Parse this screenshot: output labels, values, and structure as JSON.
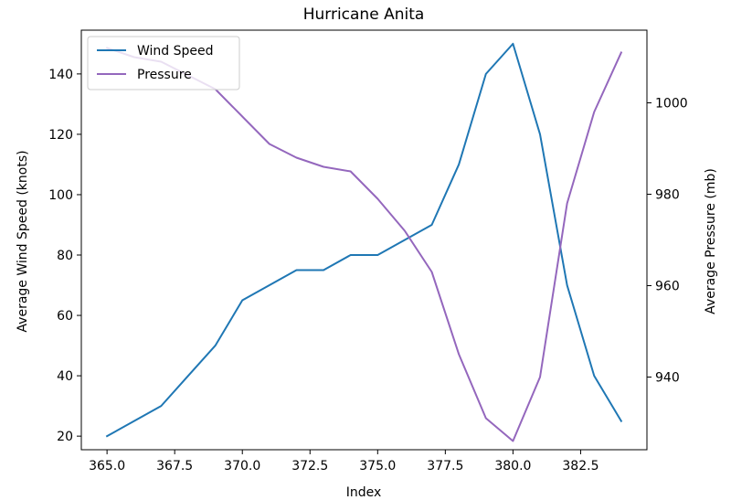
{
  "chart_data": {
    "type": "line",
    "title": "Hurricane Anita",
    "xlabel": "Index",
    "ylabel_left": "Average Wind Speed (knots)",
    "ylabel_right": "Average Pressure (mb)",
    "x": [
      365,
      366,
      367,
      368,
      369,
      370,
      371,
      372,
      373,
      374,
      375,
      376,
      377,
      378,
      379,
      380,
      381,
      382,
      383,
      384
    ],
    "xlim": [
      364.05,
      384.95
    ],
    "ylim_left": [
      15.5,
      154.5
    ],
    "ylim_right": [
      924.1,
      1015.9
    ],
    "x_ticks": [
      365.0,
      367.5,
      370.0,
      372.5,
      375.0,
      377.5,
      380.0,
      382.5
    ],
    "x_tick_labels": [
      "365.0",
      "367.5",
      "370.0",
      "372.5",
      "375.0",
      "377.5",
      "380.0",
      "382.5"
    ],
    "y_left_ticks": [
      20,
      40,
      60,
      80,
      100,
      120,
      140
    ],
    "y_left_tick_labels": [
      "20",
      "40",
      "60",
      "80",
      "100",
      "120",
      "140"
    ],
    "y_right_ticks": [
      940,
      960,
      980,
      1000
    ],
    "y_right_tick_labels": [
      "940",
      "960",
      "980",
      "1000"
    ],
    "grid": false,
    "legend_position": "upper-left",
    "series": [
      {
        "name": "Wind Speed",
        "axis": "left",
        "color": "#1f77b4",
        "values": [
          20,
          25,
          30,
          40,
          50,
          65,
          70,
          75,
          75,
          80,
          80,
          85,
          90,
          110,
          140,
          150,
          120,
          70,
          40,
          25
        ]
      },
      {
        "name": "Pressure",
        "axis": "right",
        "color": "#9467bd",
        "values": [
          1012,
          1010,
          1009,
          1006,
          1003,
          997,
          991,
          988,
          986,
          985,
          979,
          972,
          963,
          945,
          931,
          926,
          940,
          978,
          998,
          1011
        ]
      }
    ]
  }
}
